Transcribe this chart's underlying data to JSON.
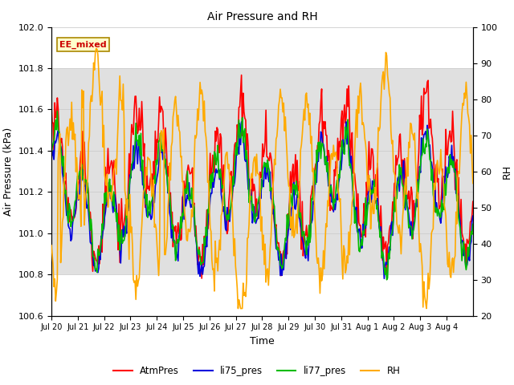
{
  "title": "Air Pressure and RH",
  "xlabel": "Time",
  "ylabel_left": "Air Pressure (kPa)",
  "ylabel_right": "RH",
  "ylim_left": [
    100.6,
    102.0
  ],
  "ylim_right": [
    20,
    100
  ],
  "yticks_left": [
    100.6,
    100.8,
    101.0,
    101.2,
    101.4,
    101.6,
    101.8,
    102.0
  ],
  "yticks_right": [
    20,
    30,
    40,
    50,
    60,
    70,
    80,
    90,
    100
  ],
  "xtick_labels": [
    "Jul 20",
    "Jul 21",
    "Jul 22",
    "Jul 23",
    "Jul 24",
    "Jul 25",
    "Jul 26",
    "Jul 27",
    "Jul 28",
    "Jul 29",
    "Jul 30",
    "Jul 31",
    "Aug 1",
    "Aug 2",
    "Aug 3",
    "Aug 4"
  ],
  "annotation_text": "EE_mixed",
  "line_colors": {
    "AtmPres": "#ff0000",
    "li75_pres": "#0000dd",
    "li77_pres": "#00bb00",
    "RH": "#ffaa00"
  },
  "bg_color": "#ffffff",
  "shading_color": "#e0e0e0",
  "shading_low": 100.8,
  "shading_high": 101.8,
  "n_points": 500,
  "seed": 7
}
